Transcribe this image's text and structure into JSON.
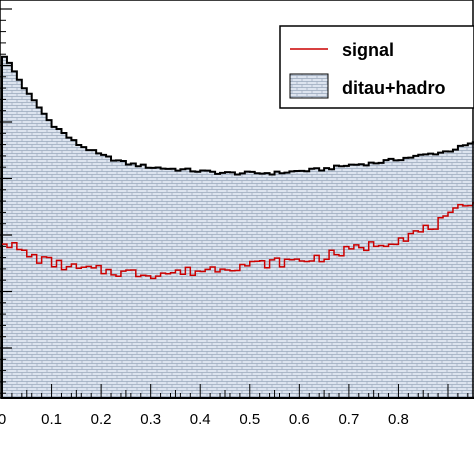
{
  "chart_data": {
    "type": "histogram",
    "title": "",
    "xlabel": "",
    "ylabel": "",
    "xlim": [
      0,
      0.95
    ],
    "ylim": [
      0,
      1
    ],
    "grid": false,
    "legend": {
      "placement": "top-right",
      "entries": [
        "signal",
        "ditau+hadro"
      ]
    },
    "x_ticks": [
      "0",
      "0.1",
      "0.2",
      "0.3",
      "0.4",
      "0.5",
      "0.6",
      "0.7",
      "0.8"
    ],
    "series": [
      {
        "name": "ditau+hadro",
        "style": "filled-hatched",
        "color": "#000000",
        "fill": "#dde4ef",
        "points": [
          [
            0.0,
            0.87
          ],
          [
            0.05,
            0.77
          ],
          [
            0.1,
            0.69
          ],
          [
            0.15,
            0.64
          ],
          [
            0.2,
            0.61
          ],
          [
            0.25,
            0.59
          ],
          [
            0.3,
            0.58
          ],
          [
            0.35,
            0.575
          ],
          [
            0.4,
            0.57
          ],
          [
            0.45,
            0.565
          ],
          [
            0.5,
            0.565
          ],
          [
            0.55,
            0.565
          ],
          [
            0.6,
            0.57
          ],
          [
            0.65,
            0.575
          ],
          [
            0.7,
            0.585
          ],
          [
            0.75,
            0.59
          ],
          [
            0.8,
            0.6
          ],
          [
            0.85,
            0.61
          ],
          [
            0.9,
            0.62
          ],
          [
            0.95,
            0.64
          ]
        ]
      },
      {
        "name": "signal",
        "style": "line",
        "color": "#cc0000",
        "points": [
          [
            0.0,
            0.4
          ],
          [
            0.05,
            0.36
          ],
          [
            0.1,
            0.34
          ],
          [
            0.15,
            0.325
          ],
          [
            0.2,
            0.32
          ],
          [
            0.25,
            0.315
          ],
          [
            0.3,
            0.312
          ],
          [
            0.35,
            0.315
          ],
          [
            0.4,
            0.32
          ],
          [
            0.45,
            0.33
          ],
          [
            0.5,
            0.335
          ],
          [
            0.55,
            0.34
          ],
          [
            0.6,
            0.345
          ],
          [
            0.65,
            0.355
          ],
          [
            0.7,
            0.37
          ],
          [
            0.75,
            0.385
          ],
          [
            0.8,
            0.4
          ],
          [
            0.85,
            0.42
          ],
          [
            0.9,
            0.45
          ],
          [
            0.95,
            0.5
          ]
        ]
      }
    ]
  }
}
